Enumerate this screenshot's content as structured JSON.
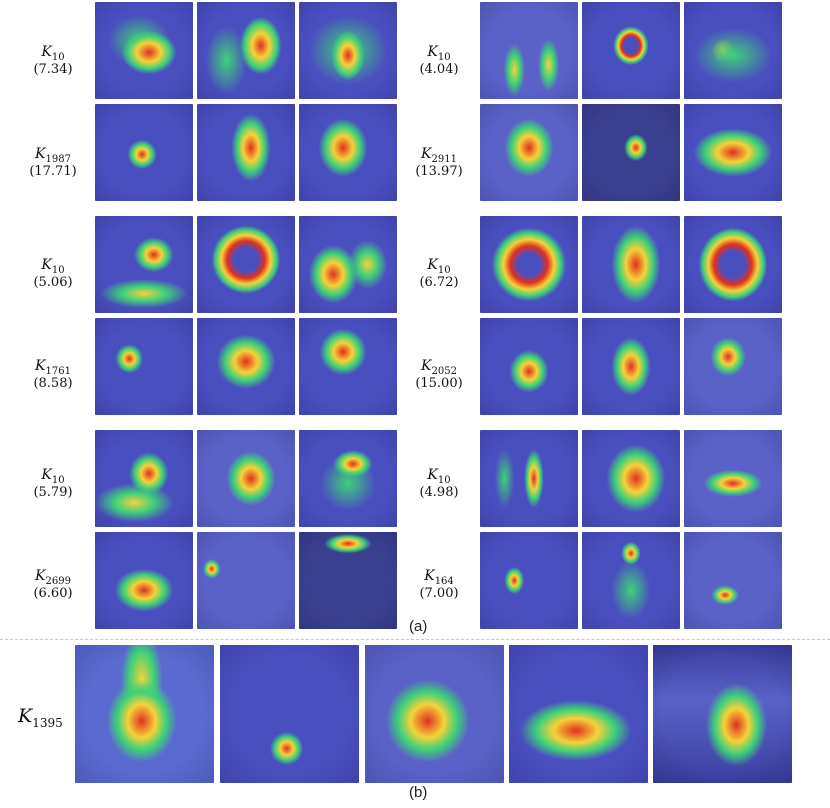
{
  "panel_a": {
    "caption": "(a)",
    "groups": [
      {
        "column": "left",
        "rows": [
          {
            "kernel_base": "K",
            "kernel_sub": "10",
            "score": "(7.34)"
          },
          {
            "kernel_base": "K",
            "kernel_sub": "1987",
            "score": "(17.71)"
          }
        ]
      },
      {
        "column": "right",
        "rows": [
          {
            "kernel_base": "K",
            "kernel_sub": "10",
            "score": "(4.04)"
          },
          {
            "kernel_base": "K",
            "kernel_sub": "2911",
            "score": "(13.97)"
          }
        ]
      },
      {
        "column": "left",
        "rows": [
          {
            "kernel_base": "K",
            "kernel_sub": "10",
            "score": "(5.06)"
          },
          {
            "kernel_base": "K",
            "kernel_sub": "1761",
            "score": "(8.58)"
          }
        ]
      },
      {
        "column": "right",
        "rows": [
          {
            "kernel_base": "K",
            "kernel_sub": "10",
            "score": "(6.72)"
          },
          {
            "kernel_base": "K",
            "kernel_sub": "2052",
            "score": "(15.00)"
          }
        ]
      },
      {
        "column": "left",
        "rows": [
          {
            "kernel_base": "K",
            "kernel_sub": "10",
            "score": "(5.79)"
          },
          {
            "kernel_base": "K",
            "kernel_sub": "2699",
            "score": "(6.60)"
          }
        ]
      },
      {
        "column": "right",
        "rows": [
          {
            "kernel_base": "K",
            "kernel_sub": "10",
            "score": "(4.98)"
          },
          {
            "kernel_base": "K",
            "kernel_sub": "164",
            "score": "(7.00)"
          }
        ]
      }
    ]
  },
  "panel_b": {
    "caption": "(b)",
    "kernel_base": "K",
    "kernel_sub": "1395"
  },
  "colors": {
    "heat_low": "#4a4fc0",
    "heat_mid": "#3fd07a",
    "heat_high": "#f5d23a",
    "heat_peak": "#e0301e",
    "divider": "#c8c8c8"
  }
}
